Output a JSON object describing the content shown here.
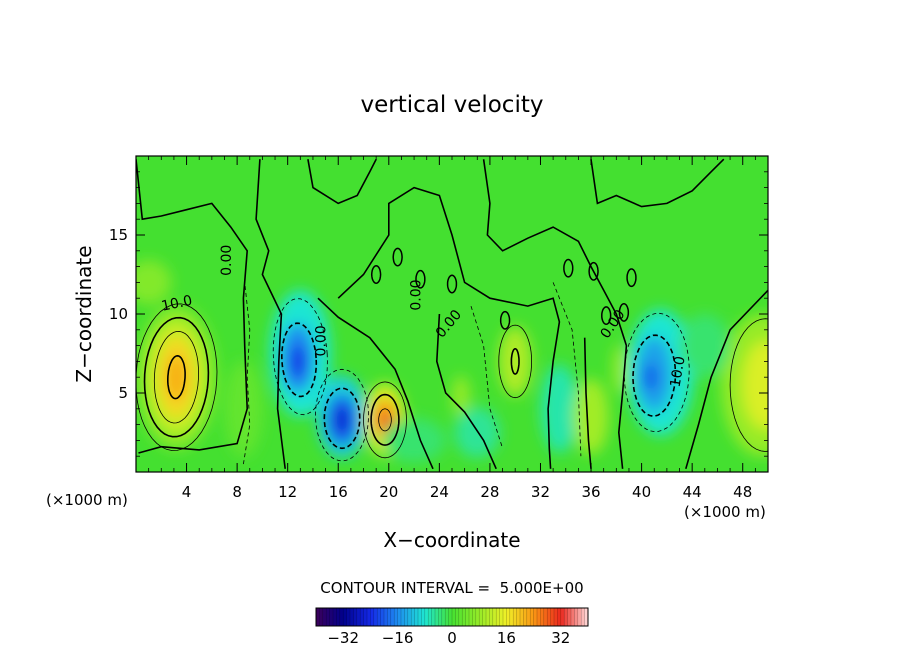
{
  "chart_data": {
    "type": "heatmap",
    "title": "vertical velocity",
    "xlabel": "X−coordinate",
    "ylabel": "Z−coordinate",
    "x_units_left": "(×1000 m)",
    "x_units_right": "(×1000 m)",
    "x_ticks": [
      "4",
      "8",
      "12",
      "16",
      "20",
      "24",
      "28",
      "32",
      "36",
      "40",
      "44",
      "48"
    ],
    "y_ticks": [
      "5",
      "10",
      "15"
    ],
    "xlim": [
      0,
      50
    ],
    "ylim": [
      0,
      20
    ],
    "contour_interval_label": "CONTOUR INTERVAL =  5.000E+00",
    "contour_labels": [
      "10.0",
      "0.00",
      "0.00",
      "0.00",
      "0.00",
      "0.00",
      "10.0"
    ],
    "colorbar": {
      "range": [
        -40,
        40
      ],
      "tick_labels": [
        "−32",
        "−16",
        "0",
        "16",
        "32"
      ],
      "tick_values": [
        -32,
        -16,
        0,
        16,
        32
      ]
    },
    "features": [
      {
        "x": 3.2,
        "z": 6.0,
        "value": 22
      },
      {
        "x": 13,
        "z": 7,
        "value": -22
      },
      {
        "x": 16.3,
        "z": 3.3,
        "value": -24
      },
      {
        "x": 19.7,
        "z": 3.3,
        "value": 30
      },
      {
        "x": 30,
        "z": 7,
        "value": 11
      },
      {
        "x": 40.7,
        "z": 6,
        "value": -18
      },
      {
        "x": 49.5,
        "z": 5.5,
        "value": 16
      }
    ]
  }
}
